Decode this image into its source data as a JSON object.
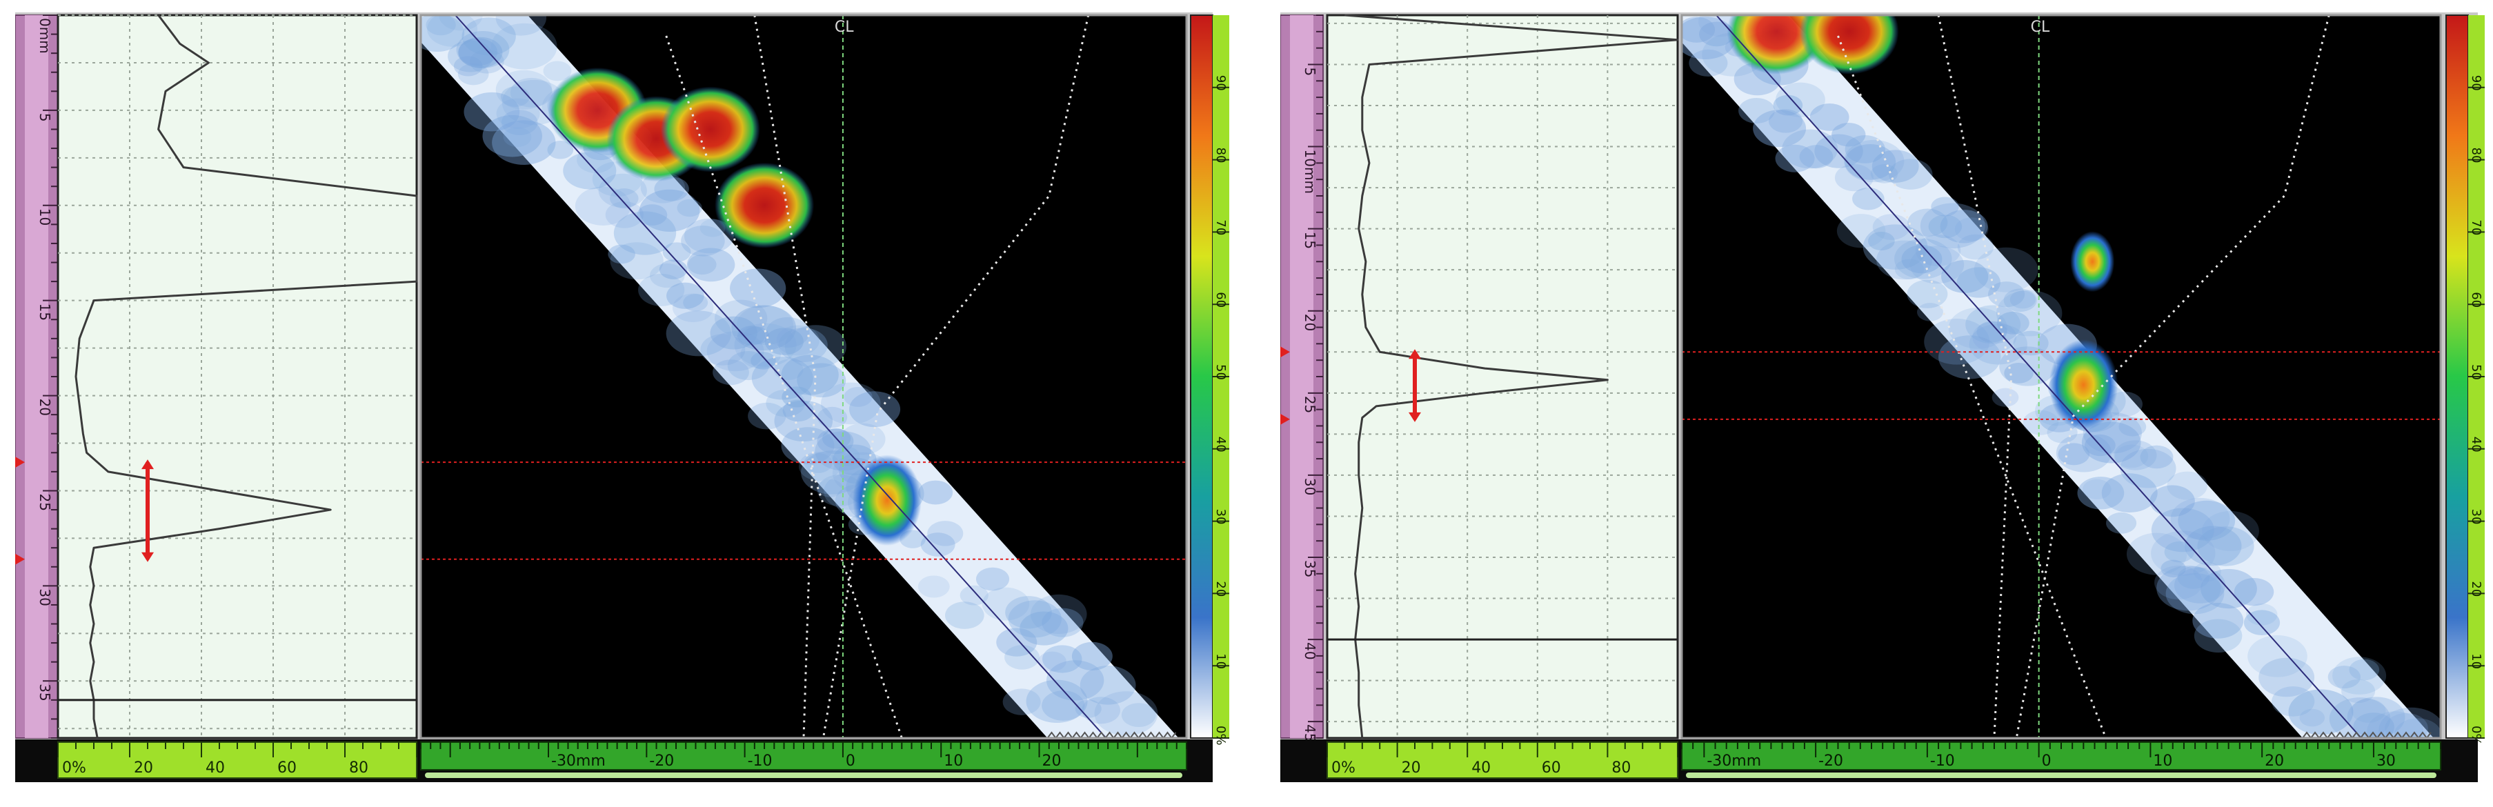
{
  "colors": {
    "depth_bar": "#b77fb2",
    "ascan_bg": "#eef8ee",
    "scan_bg": "#000000",
    "ruler_green": "#33a62a",
    "ruler_lime": "#9fe02a",
    "gate_red": "#e02020",
    "centerline": "#7fd97f",
    "palette": [
      "#ffffff",
      "#3a74c9",
      "#18a0a0",
      "#28c848",
      "#d8e41c",
      "#f07818",
      "#c41818"
    ]
  },
  "panels": [
    {
      "id": "left",
      "depth_ticks": [
        "0mm",
        "5",
        "10",
        "15",
        "20",
        "25",
        "30",
        "35"
      ],
      "amp_ticks": [
        "0%",
        "20",
        "40",
        "60",
        "80"
      ],
      "x_ticks": [
        "-30mm",
        "-20",
        "-10",
        "0",
        "10",
        "20"
      ],
      "palette_ticks": [
        "0%",
        "10",
        "20",
        "30",
        "40",
        "50",
        "60",
        "70",
        "80",
        "90"
      ],
      "cl_label": "CL",
      "ascan": {
        "depth": [
          0,
          1.5,
          2.5,
          4,
          6,
          8,
          9.5,
          11,
          12.5,
          14,
          15,
          17,
          19,
          20.5,
          22,
          23,
          24,
          25,
          26,
          27,
          28,
          29,
          30,
          31,
          32,
          33,
          34,
          35,
          36,
          37,
          38
        ],
        "amplitude": [
          28,
          34,
          42,
          30,
          28,
          35,
          100,
          100,
          100,
          100,
          10,
          6,
          5,
          6,
          7,
          8,
          14,
          45,
          76,
          45,
          10,
          9,
          10,
          9,
          10,
          9,
          10,
          9,
          10,
          10,
          11
        ]
      },
      "gate": {
        "start_depth": 23.5,
        "end_depth": 28.6,
        "amplitude": 25
      },
      "cursor_depth": 36,
      "scan": {
        "angle_deg": 55,
        "beam_entry_x": -43,
        "beam_exit_x": 35,
        "indication": {
          "x": 4.5,
          "depth": 25.5,
          "amplitude": 95
        },
        "near_field": [
          {
            "x": -25,
            "depth": 5,
            "amplitude": 95
          },
          {
            "x": -19,
            "depth": 6.5,
            "amplitude": 90
          },
          {
            "x": -13.5,
            "depth": 6,
            "amplitude": 95
          },
          {
            "x": -8,
            "depth": 10,
            "amplitude": 65
          }
        ]
      }
    },
    {
      "id": "right",
      "depth_ticks": [
        "5",
        "10mm",
        "15",
        "20",
        "25",
        "30",
        "35",
        "40",
        "45"
      ],
      "amp_ticks": [
        "0%",
        "20",
        "40",
        "60",
        "80"
      ],
      "x_ticks": [
        "-30mm",
        "-20",
        "-10",
        "0",
        "10",
        "20",
        "30"
      ],
      "palette_ticks": [
        "0%",
        "10",
        "20",
        "30",
        "40",
        "50",
        "60",
        "70",
        "80",
        "90"
      ],
      "cl_label": "CL",
      "ascan": {
        "depth": [
          2,
          3.5,
          5,
          7,
          9,
          11,
          13,
          15,
          17,
          19,
          21,
          22.5,
          23.5,
          24.2,
          25,
          25.8,
          26.5,
          28,
          30,
          32,
          34,
          36,
          38,
          40,
          42,
          44,
          46
        ],
        "amplitude": [
          5,
          100,
          12,
          10,
          10,
          12,
          10,
          9,
          11,
          10,
          11,
          15,
          45,
          80,
          45,
          14,
          10,
          9,
          9,
          10,
          9,
          8,
          9,
          8,
          9,
          9,
          10
        ]
      },
      "gate": {
        "start_depth": 22.5,
        "end_depth": 26.6,
        "amplitude": 25
      },
      "cursor_depth": 40,
      "scan": {
        "angle_deg": 55,
        "beam_entry_x": -32,
        "beam_exit_x": 36,
        "indication": {
          "x": 4,
          "depth": 24.5,
          "amplitude": 95
        },
        "secondary": {
          "x": 4.8,
          "depth": 17,
          "amplitude": 60
        },
        "near_field": [
          {
            "x": -23.5,
            "depth": 3,
            "amplitude": 95
          },
          {
            "x": -17,
            "depth": 3,
            "amplitude": 95
          }
        ]
      }
    }
  ]
}
